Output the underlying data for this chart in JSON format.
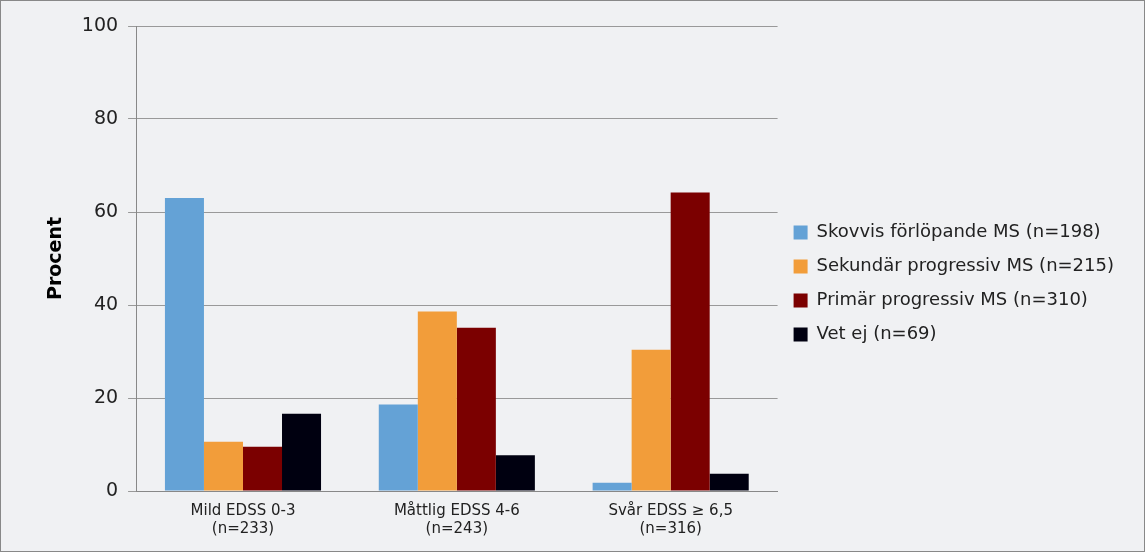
{
  "chart_data": {
    "type": "bar",
    "ylabel": "Procent",
    "categories": [
      "Mild EDSS 0-3\n(n=233)",
      "Måttlig EDSS 4-6\n(n=243)",
      "Svår EDSS ≥ 6,5\n(n=316)"
    ],
    "series": [
      {
        "name": "Skovvis förlöpande MS (n=198)",
        "color": "#64a2d6",
        "values": [
          63.0,
          18.6,
          1.8
        ]
      },
      {
        "name": "Sekundär progressiv MS (n=215)",
        "color": "#f29d3a",
        "values": [
          10.6,
          38.6,
          30.4
        ]
      },
      {
        "name": "Primär progressiv MS (n=310)",
        "color": "#7b0000",
        "values": [
          9.5,
          35.1,
          64.2
        ]
      },
      {
        "name": "Vet ej (n=69)",
        "color": "#000010",
        "values": [
          16.6,
          7.7,
          3.7
        ]
      }
    ],
    "ylim": [
      0,
      100
    ],
    "yticks": [
      0,
      20,
      40,
      60,
      80,
      100
    ],
    "grid": "y",
    "legend": "right"
  }
}
